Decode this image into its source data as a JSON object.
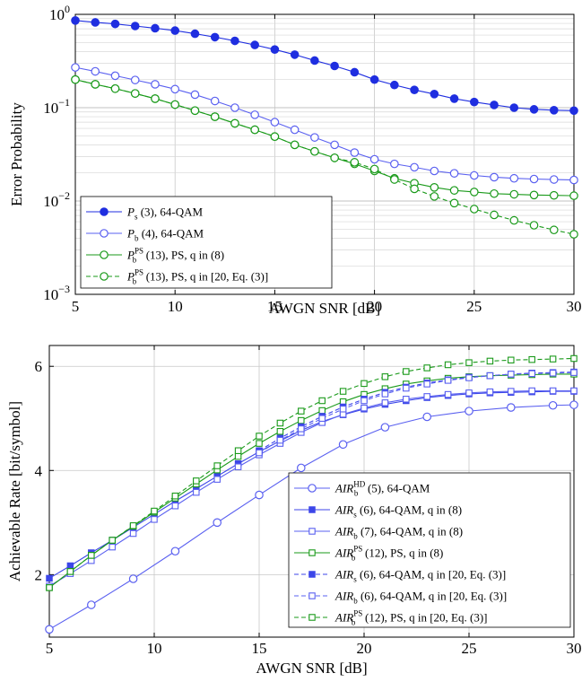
{
  "chart_data": [
    {
      "type": "line",
      "xlabel": "AWGN SNR [dB]",
      "ylabel": "Error Probability",
      "xlim": [
        5,
        30
      ],
      "ylim": [
        0.001,
        1
      ],
      "yscale": "log",
      "grid": true,
      "legend_position": "bottom-left",
      "x_ticks": [
        "5",
        "10",
        "15",
        "20",
        "25",
        "30"
      ],
      "y_ticks": [
        {
          "base": "10",
          "exp": "0",
          "value": 1
        },
        {
          "base": "10",
          "exp": "−1",
          "value": 0.1
        },
        {
          "base": "10",
          "exp": "−2",
          "value": 0.01
        },
        {
          "base": "10",
          "exp": "−3",
          "value": 0.001
        }
      ],
      "x": [
        5,
        6,
        7,
        8,
        9,
        10,
        11,
        12,
        13,
        14,
        15,
        16,
        17,
        18,
        19,
        20,
        21,
        22,
        23,
        24,
        25,
        26,
        27,
        28,
        29,
        30
      ],
      "series": [
        {
          "sym": "P",
          "sub": "s",
          "sup": "",
          "rest": " (3), 64-QAM",
          "color": "#1f2ee0",
          "marker": "filled-circle",
          "dash": "solid",
          "values": [
            0.86,
            0.82,
            0.79,
            0.75,
            0.71,
            0.67,
            0.62,
            0.57,
            0.52,
            0.47,
            0.42,
            0.37,
            0.32,
            0.28,
            0.24,
            0.2,
            0.175,
            0.155,
            0.14,
            0.125,
            0.115,
            0.107,
            0.1,
            0.096,
            0.094,
            0.093
          ]
        },
        {
          "sym": "P",
          "sub": "b",
          "sup": "",
          "rest": " (4), 64-QAM",
          "color": "#5a60f0",
          "marker": "open-circle",
          "dash": "solid",
          "values": [
            0.27,
            0.245,
            0.22,
            0.198,
            0.178,
            0.158,
            0.138,
            0.118,
            0.1,
            0.084,
            0.07,
            0.058,
            0.048,
            0.04,
            0.033,
            0.028,
            0.025,
            0.023,
            0.021,
            0.0198,
            0.0188,
            0.018,
            0.0175,
            0.0172,
            0.017,
            0.0168
          ]
        },
        {
          "sym": "P",
          "sub": "b",
          "sup": "PS",
          "rest": " (13), PS, q in (8)",
          "color": "#1a9a1a",
          "marker": "open-circle",
          "dash": "solid",
          "values": [
            0.2,
            0.178,
            0.16,
            0.142,
            0.125,
            0.108,
            0.093,
            0.08,
            0.068,
            0.058,
            0.049,
            0.04,
            0.034,
            0.029,
            0.025,
            0.021,
            0.0175,
            0.0155,
            0.014,
            0.013,
            0.0125,
            0.012,
            0.0118,
            0.0116,
            0.0115,
            0.0114
          ]
        },
        {
          "sym": "P",
          "sub": "b",
          "sup": "PS",
          "rest": " (13), PS, q in [20, Eq. (3)]",
          "color": "#1a9a1a",
          "marker": "open-circle",
          "dash": "dashed",
          "values": [
            0.2,
            0.178,
            0.16,
            0.142,
            0.125,
            0.108,
            0.093,
            0.08,
            0.068,
            0.058,
            0.049,
            0.04,
            0.034,
            0.029,
            0.026,
            0.022,
            0.017,
            0.0135,
            0.0112,
            0.0095,
            0.0082,
            0.0071,
            0.0062,
            0.0055,
            0.0049,
            0.0044
          ]
        }
      ]
    },
    {
      "type": "line",
      "xlabel": "AWGN SNR [dB]",
      "ylabel": "Achievable Rate [bit/symbol]",
      "xlim": [
        5,
        30
      ],
      "ylim": [
        0.8,
        6.4
      ],
      "grid": true,
      "legend_position": "bottom-right",
      "x_ticks": [
        "5",
        "10",
        "15",
        "20",
        "25",
        "30"
      ],
      "y_ticks": [
        "2",
        "4",
        "6"
      ],
      "series": [
        {
          "sym": "AIR",
          "sub": "b",
          "sup": "HD",
          "rest": " (5), 64-QAM",
          "color": "#5a60f0",
          "marker": "open-circle",
          "dash": "solid",
          "x": [
            5,
            7,
            9,
            11,
            13,
            15,
            17,
            19,
            21,
            23,
            25,
            27,
            29,
            30
          ],
          "values": [
            0.95,
            1.42,
            1.92,
            2.45,
            3.0,
            3.53,
            4.05,
            4.5,
            4.83,
            5.03,
            5.14,
            5.21,
            5.25,
            5.26
          ]
        },
        {
          "sym": "AIR",
          "sub": "s",
          "sup": "",
          "rest": " (6), 64-QAM, q in (8)",
          "color": "#3c46e8",
          "marker": "filled-square",
          "dash": "solid",
          "x": [
            5,
            6,
            7,
            8,
            9,
            10,
            11,
            12,
            13,
            14,
            15,
            16,
            17,
            18,
            19,
            20,
            21,
            22,
            23,
            24,
            25,
            26,
            27,
            28,
            29,
            30
          ],
          "values": [
            1.93,
            2.17,
            2.42,
            2.66,
            2.91,
            3.16,
            3.41,
            3.65,
            3.89,
            4.13,
            4.36,
            4.57,
            4.77,
            4.94,
            5.07,
            5.18,
            5.27,
            5.34,
            5.4,
            5.44,
            5.47,
            5.49,
            5.5,
            5.51,
            5.52,
            5.52
          ]
        },
        {
          "sym": "AIR",
          "sub": "b",
          "sup": "",
          "rest": " (7), 64-QAM, q in (8)",
          "color": "#5a60f0",
          "marker": "open-square",
          "dash": "solid",
          "x": [
            5,
            6,
            7,
            8,
            9,
            10,
            11,
            12,
            13,
            14,
            15,
            16,
            17,
            18,
            19,
            20,
            21,
            22,
            23,
            24,
            25,
            26,
            27,
            28,
            29,
            30
          ],
          "values": [
            1.78,
            2.02,
            2.27,
            2.53,
            2.79,
            3.06,
            3.32,
            3.58,
            3.83,
            4.07,
            4.3,
            4.52,
            4.73,
            4.92,
            5.08,
            5.2,
            5.3,
            5.37,
            5.42,
            5.46,
            5.49,
            5.51,
            5.52,
            5.53,
            5.53,
            5.53
          ]
        },
        {
          "sym": "AIR",
          "sub": "b",
          "sup": "PS",
          "rest": " (12), PS, q in (8)",
          "color": "#1a9a1a",
          "marker": "open-square",
          "dash": "solid",
          "x": [
            5,
            6,
            7,
            8,
            9,
            10,
            11,
            12,
            13,
            14,
            15,
            16,
            17,
            18,
            19,
            20,
            21,
            22,
            23,
            24,
            25,
            26,
            27,
            28,
            29,
            30
          ],
          "values": [
            1.75,
            2.06,
            2.37,
            2.66,
            2.93,
            3.2,
            3.47,
            3.74,
            4.01,
            4.27,
            4.52,
            4.75,
            4.96,
            5.15,
            5.32,
            5.46,
            5.57,
            5.66,
            5.72,
            5.77,
            5.8,
            5.82,
            5.83,
            5.84,
            5.85,
            5.85
          ]
        },
        {
          "sym": "AIR",
          "sub": "s",
          "sup": "",
          "rest": " (6), 64-QAM, q in [20, Eq. (3)]",
          "color": "#3c46e8",
          "marker": "filled-square",
          "dash": "dashed",
          "x": [
            15,
            16,
            17,
            18,
            19,
            20,
            21,
            22,
            23,
            24,
            25,
            26,
            27,
            28,
            29,
            30
          ],
          "values": [
            4.38,
            4.62,
            4.84,
            5.04,
            5.22,
            5.37,
            5.5,
            5.6,
            5.68,
            5.74,
            5.79,
            5.82,
            5.85,
            5.87,
            5.88,
            5.89
          ]
        },
        {
          "sym": "AIR",
          "sub": "b",
          "sup": "",
          "rest": " (6), 64-QAM, q in [20, Eq. (3)]",
          "color": "#5a60f0",
          "marker": "open-square",
          "dash": "dashed",
          "x": [
            15,
            16,
            17,
            18,
            19,
            20,
            21,
            22,
            23,
            24,
            25,
            26,
            27,
            28,
            29,
            30
          ],
          "values": [
            4.34,
            4.58,
            4.8,
            5.0,
            5.18,
            5.34,
            5.47,
            5.58,
            5.66,
            5.73,
            5.78,
            5.82,
            5.85,
            5.86,
            5.87,
            5.88
          ]
        },
        {
          "sym": "AIR",
          "sub": "b",
          "sup": "PS",
          "rest": " (12), PS, q in [20, Eq. (3)]",
          "color": "#1a9a1a",
          "marker": "open-square",
          "dash": "dashed",
          "x": [
            5,
            6,
            7,
            8,
            9,
            10,
            11,
            12,
            13,
            14,
            15,
            16,
            17,
            18,
            19,
            20,
            21,
            22,
            23,
            24,
            25,
            26,
            27,
            28,
            29,
            30
          ],
          "values": [
            1.75,
            2.06,
            2.37,
            2.66,
            2.94,
            3.22,
            3.51,
            3.8,
            4.09,
            4.38,
            4.66,
            4.91,
            5.14,
            5.34,
            5.52,
            5.67,
            5.8,
            5.9,
            5.97,
            6.03,
            6.07,
            6.1,
            6.12,
            6.13,
            6.14,
            6.15
          ]
        }
      ]
    }
  ]
}
